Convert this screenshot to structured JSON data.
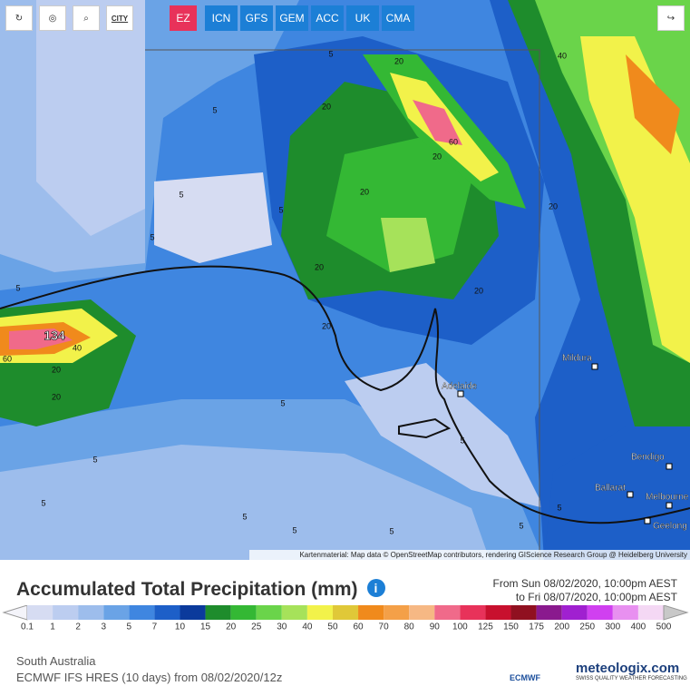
{
  "toolbar": {
    "city": "CITY",
    "models": [
      "EZ",
      "ICN",
      "GFS",
      "GEM",
      "ACC",
      "UK",
      "CMA"
    ]
  },
  "map": {
    "max_label": "134",
    "cities": [
      "Mildura",
      "Adelaide",
      "Bendigo",
      "Ballarat",
      "Melbourne",
      "Geelong"
    ],
    "contours": [
      "5",
      "5",
      "5",
      "5",
      "5",
      "5",
      "20",
      "20",
      "20",
      "20",
      "60",
      "20",
      "20",
      "20",
      "40",
      "20",
      "40",
      "20",
      "20",
      "60",
      "5",
      "5",
      "5",
      "5",
      "5",
      "5",
      "5",
      "5",
      "5"
    ],
    "attribution": "Kartenmaterial: Map data © OpenStreetMap contributors, rendering GIScience Research Group @ Heidelberg University"
  },
  "legend": {
    "title": "Accumulated Total Precipitation (mm)",
    "info": "i",
    "from": "From Sun 08/02/2020, 10:00pm AEST",
    "to": "to Fri 08/07/2020, 10:00pm AEST",
    "levels": [
      0.1,
      1,
      2,
      3,
      5,
      7,
      10,
      15,
      20,
      25,
      30,
      40,
      50,
      60,
      70,
      80,
      90,
      100,
      125,
      150,
      175,
      200,
      250,
      300,
      400,
      500
    ],
    "colors": [
      "#d6dcf2",
      "#bccdf0",
      "#9dbdec",
      "#6aa3e6",
      "#3f86e0",
      "#1d5fc8",
      "#0b3a9c",
      "#1e8c2c",
      "#34b834",
      "#6ad44a",
      "#a6e25a",
      "#f2f24a",
      "#e0c838",
      "#f08a1c",
      "#f4a048",
      "#f6b884",
      "#f06a8a",
      "#e8325a",
      "#c8102e",
      "#901020",
      "#8a1a8e",
      "#a020d0",
      "#d040f0",
      "#e890f0",
      "#f4d8f4"
    ]
  },
  "footer": {
    "region": "South Australia",
    "model_run": "ECMWF IFS HRES (10 days) from 08/02/2020/12z",
    "ecmwf": "ECMWF",
    "brand": "meteologix.com",
    "tagline": "SWISS QUALITY WEATHER FORECASTING"
  }
}
